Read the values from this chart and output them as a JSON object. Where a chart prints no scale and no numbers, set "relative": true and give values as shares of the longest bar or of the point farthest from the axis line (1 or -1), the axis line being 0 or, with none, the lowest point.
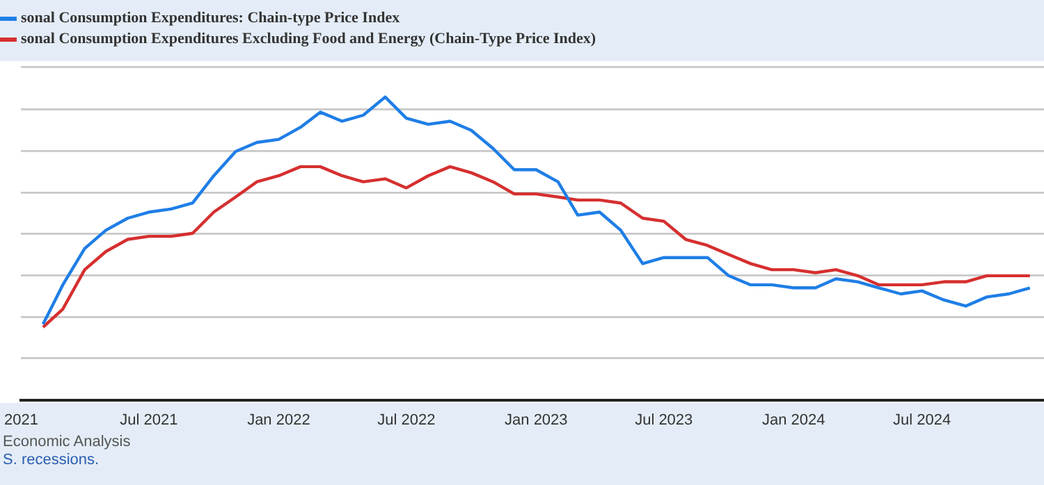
{
  "chart_data": {
    "type": "line",
    "relative": true,
    "x": [
      "2021-02",
      "2021-03",
      "2021-04",
      "2021-05",
      "2021-06",
      "2021-07",
      "2021-08",
      "2021-09",
      "2021-10",
      "2021-11",
      "2021-12",
      "2022-01",
      "2022-02",
      "2022-03",
      "2022-04",
      "2022-05",
      "2022-06",
      "2022-07",
      "2022-08",
      "2022-09",
      "2022-10",
      "2022-11",
      "2022-12",
      "2023-01",
      "2023-02",
      "2023-03",
      "2023-04",
      "2023-05",
      "2023-06",
      "2023-07",
      "2023-08",
      "2023-09",
      "2023-10",
      "2023-11",
      "2023-12",
      "2024-01",
      "2024-02",
      "2024-03",
      "2024-04",
      "2024-05",
      "2024-06",
      "2024-07",
      "2024-08",
      "2024-09",
      "2024-10",
      "2024-11",
      "2024-12"
    ],
    "series": [
      {
        "name": "sonal Consumption Expenditures: Chain-type Price Index",
        "color": "#1f7ee6",
        "values": [
          0.25,
          0.38,
          0.5,
          0.56,
          0.6,
          0.62,
          0.63,
          0.65,
          0.74,
          0.82,
          0.85,
          0.86,
          0.9,
          0.95,
          0.92,
          0.94,
          1.0,
          0.93,
          0.91,
          0.92,
          0.89,
          0.83,
          0.76,
          0.76,
          0.72,
          0.61,
          0.62,
          0.56,
          0.45,
          0.47,
          0.47,
          0.47,
          0.41,
          0.38,
          0.38,
          0.37,
          0.37,
          0.4,
          0.39,
          0.37,
          0.35,
          0.36,
          0.33,
          0.31,
          0.34,
          0.35,
          0.37
        ]
      },
      {
        "name": "sonal Consumption Expenditures Excluding Food and Energy (Chain-Type Price Index)",
        "color": "#d62f2f",
        "values": [
          0.24,
          0.3,
          0.43,
          0.49,
          0.53,
          0.54,
          0.54,
          0.55,
          0.62,
          0.67,
          0.72,
          0.74,
          0.77,
          0.77,
          0.74,
          0.72,
          0.73,
          0.7,
          0.74,
          0.77,
          0.75,
          0.72,
          0.68,
          0.68,
          0.67,
          0.66,
          0.66,
          0.65,
          0.6,
          0.59,
          0.53,
          0.51,
          0.48,
          0.45,
          0.43,
          0.43,
          0.42,
          0.43,
          0.41,
          0.38,
          0.38,
          0.38,
          0.39,
          0.39,
          0.41,
          0.41,
          0.41
        ]
      }
    ],
    "xlim": [
      "2021-01-01",
      "2024-12-21"
    ],
    "xticks": [
      {
        "value": "2021-01",
        "label": "2021"
      },
      {
        "value": "2021-07",
        "label": "Jul 2021"
      },
      {
        "value": "2022-01",
        "label": "Jan 2022"
      },
      {
        "value": "2022-07",
        "label": "Jul 2022"
      },
      {
        "value": "2023-01",
        "label": "Jan 2023"
      },
      {
        "value": "2023-07",
        "label": "Jul 2023"
      },
      {
        "value": "2024-01",
        "label": "Jan 2024"
      },
      {
        "value": "2024-07",
        "label": "Jul 2024"
      }
    ],
    "grid": "y",
    "legend": "top left",
    "marker": "none",
    "line_style": "solid",
    "annotations": [
      "Economic Analysis",
      "S. recessions."
    ]
  }
}
